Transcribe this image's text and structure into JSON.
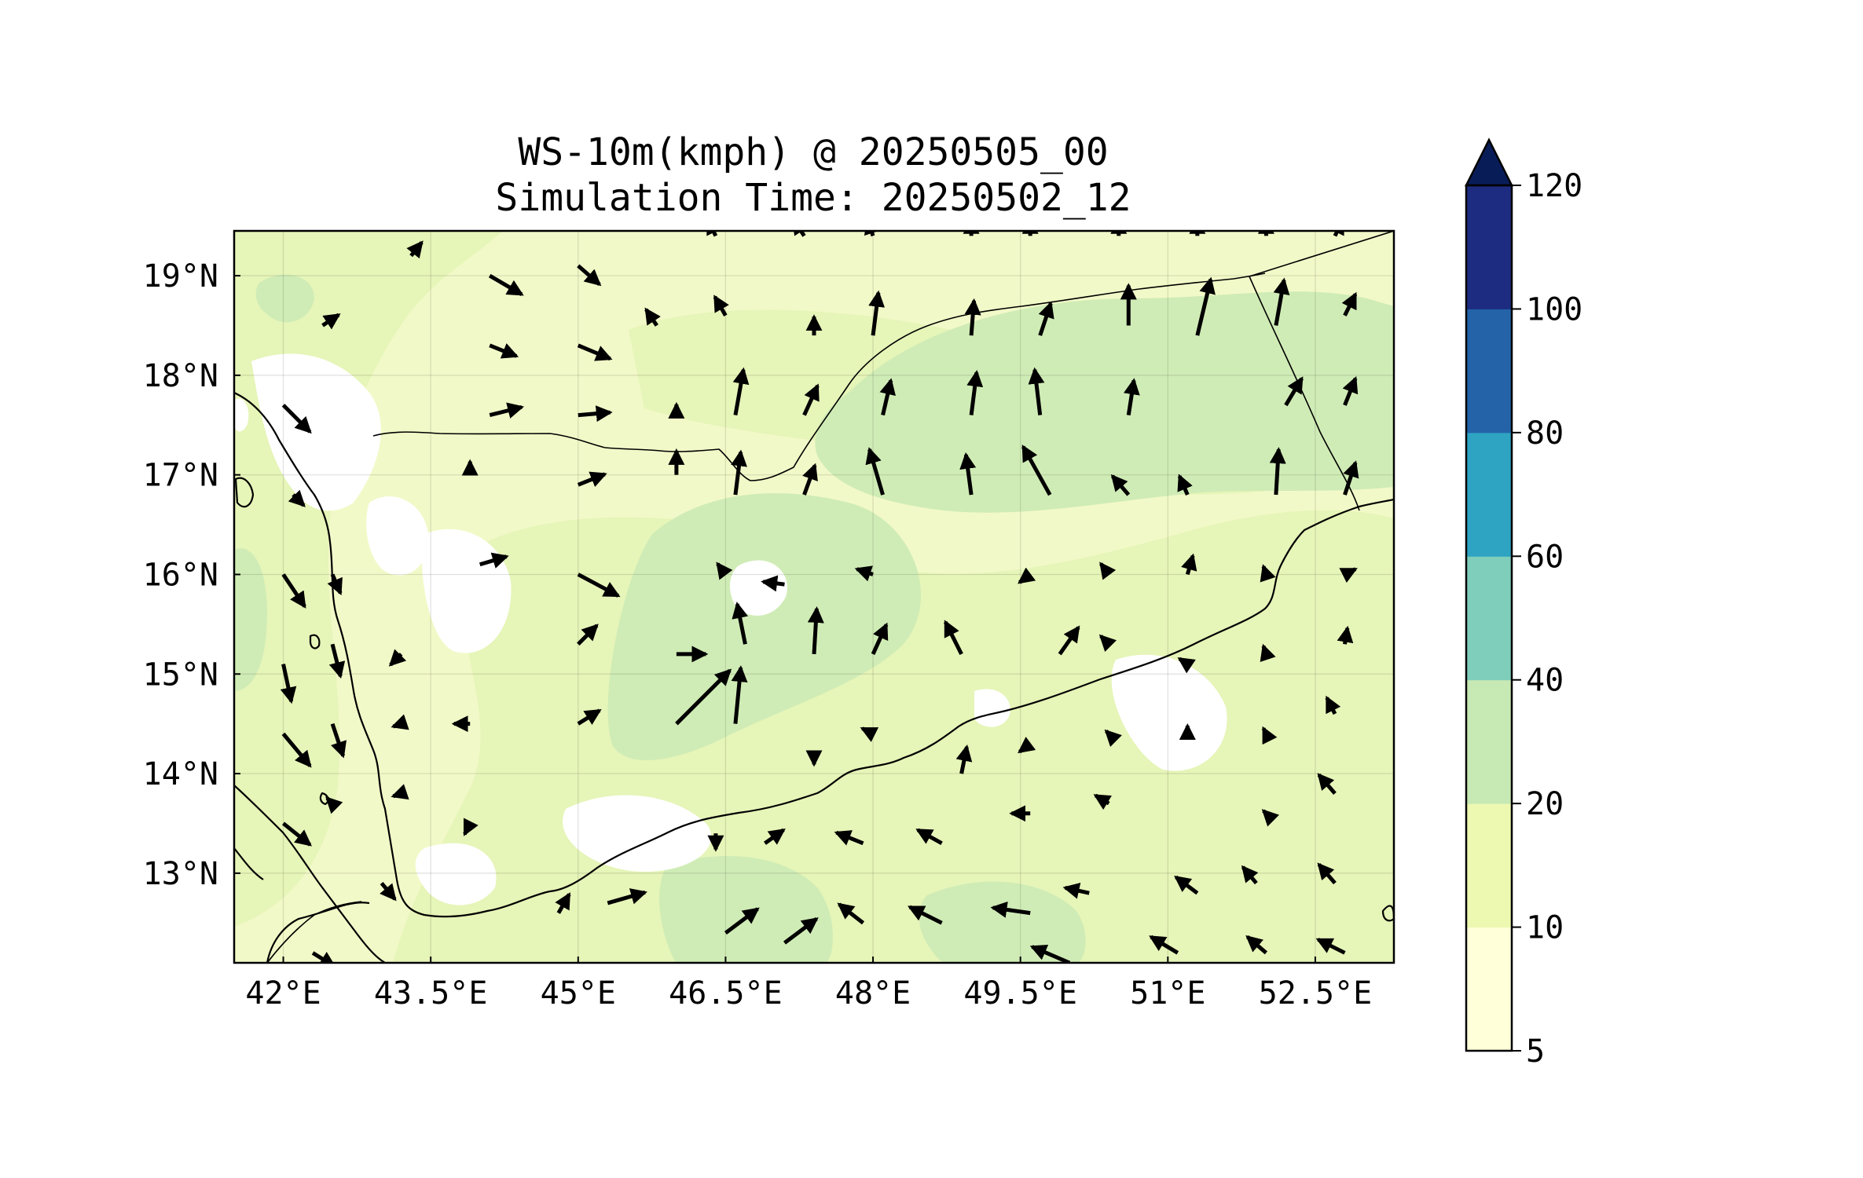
{
  "title_line1": "WS-10m(kmph) @ 20250505_00",
  "title_line2": "Simulation Time: 20250502_12",
  "map": {
    "lon_range": [
      41.5,
      53.3
    ],
    "lat_range": [
      12.1,
      19.45
    ],
    "lon_ticks": [
      {
        "value": 42,
        "label": "42°E"
      },
      {
        "value": 43.5,
        "label": "43.5°E"
      },
      {
        "value": 45,
        "label": "45°E"
      },
      {
        "value": 46.5,
        "label": "46.5°E"
      },
      {
        "value": 48,
        "label": "48°E"
      },
      {
        "value": 49.5,
        "label": "49.5°E"
      },
      {
        "value": 51,
        "label": "51°E"
      },
      {
        "value": 52.5,
        "label": "52.5°E"
      }
    ],
    "lat_ticks": [
      {
        "value": 13,
        "label": "13°N"
      },
      {
        "value": 14,
        "label": "14°N"
      },
      {
        "value": 15,
        "label": "15°N"
      },
      {
        "value": 16,
        "label": "16°N"
      },
      {
        "value": 17,
        "label": "17°N"
      },
      {
        "value": 18,
        "label": "18°N"
      },
      {
        "value": 19,
        "label": "19°N"
      }
    ],
    "background_color": "#f2f9c8",
    "shading": [
      {
        "band": "10-20",
        "color": "#e6f5b8",
        "region": "wide"
      },
      {
        "band": "20-40",
        "color": "#d0ecb6",
        "region": "patches"
      },
      {
        "band": "5-10",
        "color": "#ffffff",
        "region": "calm"
      }
    ]
  },
  "colorbar": {
    "extend": "max",
    "levels": [
      {
        "label": "5",
        "color": "#ffffd9"
      },
      {
        "label": "10",
        "color": "#edf8b1"
      },
      {
        "label": "20",
        "color": "#c7e9b4"
      },
      {
        "label": "40",
        "color": "#7fcdbb"
      },
      {
        "label": "60",
        "color": "#2ea4c2"
      },
      {
        "label": "80",
        "color": "#2463a8"
      },
      {
        "label": "100",
        "color": "#1d2c80"
      },
      {
        "label": "120",
        "color": "#081d58"
      }
    ]
  },
  "wind_vectors": [
    {
      "lon": 42.0,
      "lat": 17.7,
      "u": 10,
      "v": -10
    },
    {
      "lon": 42.1,
      "lat": 16.8,
      "u": 4,
      "v": -4
    },
    {
      "lon": 42.0,
      "lat": 16.0,
      "u": 8,
      "v": -12
    },
    {
      "lon": 42.0,
      "lat": 15.1,
      "u": 3,
      "v": -14
    },
    {
      "lon": 42.0,
      "lat": 14.4,
      "u": 10,
      "v": -12
    },
    {
      "lon": 42.0,
      "lat": 13.5,
      "u": 10,
      "v": -8
    },
    {
      "lon": 42.4,
      "lat": 18.5,
      "u": 6,
      "v": 4
    },
    {
      "lon": 42.5,
      "lat": 16.0,
      "u": 3,
      "v": -7
    },
    {
      "lon": 42.5,
      "lat": 15.3,
      "u": 3,
      "v": -12
    },
    {
      "lon": 42.5,
      "lat": 14.5,
      "u": 4,
      "v": -12
    },
    {
      "lon": 42.5,
      "lat": 13.7,
      "u": -2,
      "v": 2
    },
    {
      "lon": 42.3,
      "lat": 12.2,
      "u": 8,
      "v": -5
    },
    {
      "lon": 43.3,
      "lat": 19.2,
      "u": 4,
      "v": 5
    },
    {
      "lon": 43.2,
      "lat": 15.2,
      "u": -4,
      "v": -4
    },
    {
      "lon": 43.2,
      "lat": 14.5,
      "u": -3,
      "v": -1
    },
    {
      "lon": 43.2,
      "lat": 13.8,
      "u": -3,
      "v": -1
    },
    {
      "lon": 43.0,
      "lat": 12.9,
      "u": 5,
      "v": -6
    },
    {
      "lon": 44.1,
      "lat": 19.0,
      "u": 12,
      "v": -7
    },
    {
      "lon": 44.1,
      "lat": 18.3,
      "u": 10,
      "v": -4
    },
    {
      "lon": 44.1,
      "lat": 17.6,
      "u": 12,
      "v": 3
    },
    {
      "lon": 43.9,
      "lat": 17.0,
      "u": 0,
      "v": 5
    },
    {
      "lon": 44.0,
      "lat": 16.1,
      "u": 10,
      "v": 3
    },
    {
      "lon": 43.9,
      "lat": 14.5,
      "u": -6,
      "v": 0
    },
    {
      "lon": 43.9,
      "lat": 13.5,
      "u": -2,
      "v": -4
    },
    {
      "lon": 45.0,
      "lat": 19.1,
      "u": 8,
      "v": -7
    },
    {
      "lon": 45.0,
      "lat": 18.3,
      "u": 12,
      "v": -5
    },
    {
      "lon": 45.0,
      "lat": 17.6,
      "u": 12,
      "v": 1
    },
    {
      "lon": 45.0,
      "lat": 16.9,
      "u": 10,
      "v": 4
    },
    {
      "lon": 45.0,
      "lat": 16.0,
      "u": 15,
      "v": -8
    },
    {
      "lon": 45.0,
      "lat": 15.3,
      "u": 7,
      "v": 7
    },
    {
      "lon": 45.0,
      "lat": 14.5,
      "u": 8,
      "v": 5
    },
    {
      "lon": 44.8,
      "lat": 12.6,
      "u": 4,
      "v": 7
    },
    {
      "lon": 45.3,
      "lat": 12.7,
      "u": 14,
      "v": 4
    },
    {
      "lon": 45.8,
      "lat": 18.5,
      "u": -4,
      "v": 6
    },
    {
      "lon": 46.0,
      "lat": 17.0,
      "u": 0,
      "v": 9
    },
    {
      "lon": 46.0,
      "lat": 17.6,
      "u": 0,
      "v": 4
    },
    {
      "lon": 46.0,
      "lat": 15.2,
      "u": 11,
      "v": 0
    },
    {
      "lon": 46.0,
      "lat": 14.5,
      "u": 20,
      "v": 20
    },
    {
      "lon": 46.4,
      "lat": 19.4,
      "u": -3,
      "v": 6
    },
    {
      "lon": 46.5,
      "lat": 18.6,
      "u": -4,
      "v": 7
    },
    {
      "lon": 46.6,
      "lat": 17.6,
      "u": 3,
      "v": 17
    },
    {
      "lon": 46.6,
      "lat": 16.8,
      "u": 2,
      "v": 16
    },
    {
      "lon": 46.5,
      "lat": 16.0,
      "u": -3,
      "v": 4
    },
    {
      "lon": 46.7,
      "lat": 15.3,
      "u": -3,
      "v": 15
    },
    {
      "lon": 46.6,
      "lat": 14.5,
      "u": 2,
      "v": 21
    },
    {
      "lon": 46.5,
      "lat": 12.4,
      "u": 12,
      "v": 9
    },
    {
      "lon": 46.4,
      "lat": 13.4,
      "u": 0,
      "v": -6
    },
    {
      "lon": 47.3,
      "lat": 19.4,
      "u": -4,
      "v": 6
    },
    {
      "lon": 47.4,
      "lat": 18.4,
      "u": 0,
      "v": 7
    },
    {
      "lon": 47.3,
      "lat": 17.6,
      "u": 5,
      "v": 11
    },
    {
      "lon": 47.3,
      "lat": 16.8,
      "u": 4,
      "v": 11
    },
    {
      "lon": 47.4,
      "lat": 15.2,
      "u": 1,
      "v": 17
    },
    {
      "lon": 47.4,
      "lat": 14.2,
      "u": 0,
      "v": -4
    },
    {
      "lon": 47.1,
      "lat": 15.9,
      "u": -8,
      "v": 1
    },
    {
      "lon": 46.9,
      "lat": 13.3,
      "u": 7,
      "v": 5
    },
    {
      "lon": 47.1,
      "lat": 12.3,
      "u": 12,
      "v": 9
    },
    {
      "lon": 48.0,
      "lat": 19.4,
      "u": -2,
      "v": 6
    },
    {
      "lon": 48.0,
      "lat": 18.4,
      "u": 2,
      "v": 16
    },
    {
      "lon": 48.1,
      "lat": 17.6,
      "u": 3,
      "v": 13
    },
    {
      "lon": 48.1,
      "lat": 16.8,
      "u": -5,
      "v": 17
    },
    {
      "lon": 48.0,
      "lat": 16.0,
      "u": -6,
      "v": 2
    },
    {
      "lon": 48.0,
      "lat": 15.2,
      "u": 5,
      "v": 11
    },
    {
      "lon": 48.0,
      "lat": 14.4,
      "u": -4,
      "v": 2
    },
    {
      "lon": 47.9,
      "lat": 13.3,
      "u": -10,
      "v": 4
    },
    {
      "lon": 47.9,
      "lat": 12.5,
      "u": -9,
      "v": 7
    },
    {
      "lon": 49.0,
      "lat": 19.4,
      "u": 0,
      "v": 6
    },
    {
      "lon": 49.0,
      "lat": 18.4,
      "u": 1,
      "v": 13
    },
    {
      "lon": 49.0,
      "lat": 17.6,
      "u": 2,
      "v": 16
    },
    {
      "lon": 49.0,
      "lat": 16.8,
      "u": -2,
      "v": 15
    },
    {
      "lon": 48.9,
      "lat": 15.2,
      "u": -6,
      "v": 12
    },
    {
      "lon": 48.9,
      "lat": 14.0,
      "u": 2,
      "v": 10
    },
    {
      "lon": 48.7,
      "lat": 13.3,
      "u": -9,
      "v": 5
    },
    {
      "lon": 48.7,
      "lat": 12.5,
      "u": -12,
      "v": 6
    },
    {
      "lon": 49.6,
      "lat": 19.4,
      "u": 0,
      "v": 6
    },
    {
      "lon": 49.7,
      "lat": 18.4,
      "u": 4,
      "v": 12
    },
    {
      "lon": 49.7,
      "lat": 17.6,
      "u": -2,
      "v": 17
    },
    {
      "lon": 49.8,
      "lat": 16.8,
      "u": -10,
      "v": 18
    },
    {
      "lon": 49.6,
      "lat": 16.0,
      "u": -4,
      "v": -3
    },
    {
      "lon": 49.9,
      "lat": 15.2,
      "u": 7,
      "v": 10
    },
    {
      "lon": 49.6,
      "lat": 14.3,
      "u": -4,
      "v": -3
    },
    {
      "lon": 49.6,
      "lat": 13.6,
      "u": -7,
      "v": 0
    },
    {
      "lon": 49.6,
      "lat": 12.6,
      "u": -14,
      "v": 2
    },
    {
      "lon": 50.5,
      "lat": 19.4,
      "u": 0,
      "v": 6
    },
    {
      "lon": 50.6,
      "lat": 18.5,
      "u": 0,
      "v": 15
    },
    {
      "lon": 50.6,
      "lat": 17.6,
      "u": 2,
      "v": 13
    },
    {
      "lon": 50.6,
      "lat": 16.8,
      "u": -6,
      "v": 7
    },
    {
      "lon": 50.4,
      "lat": 16.0,
      "u": -3,
      "v": 4
    },
    {
      "lon": 50.4,
      "lat": 15.3,
      "u": -3,
      "v": 3
    },
    {
      "lon": 50.4,
      "lat": 14.4,
      "u": -1,
      "v": 1
    },
    {
      "lon": 50.4,
      "lat": 13.7,
      "u": -5,
      "v": 3
    },
    {
      "lon": 50.2,
      "lat": 12.8,
      "u": -9,
      "v": 2
    },
    {
      "lon": 50.0,
      "lat": 12.1,
      "u": -14,
      "v": 6
    },
    {
      "lon": 51.3,
      "lat": 19.4,
      "u": 0,
      "v": 6
    },
    {
      "lon": 51.3,
      "lat": 18.4,
      "u": 5,
      "v": 21
    },
    {
      "lon": 51.2,
      "lat": 16.8,
      "u": -3,
      "v": 7
    },
    {
      "lon": 51.2,
      "lat": 16.0,
      "u": 2,
      "v": 7
    },
    {
      "lon": 51.2,
      "lat": 15.1,
      "u": -3,
      "v": 2
    },
    {
      "lon": 51.2,
      "lat": 14.4,
      "u": 0,
      "v": 3
    },
    {
      "lon": 51.3,
      "lat": 12.8,
      "u": -8,
      "v": 6
    },
    {
      "lon": 51.1,
      "lat": 12.2,
      "u": -10,
      "v": 6
    },
    {
      "lon": 52.0,
      "lat": 19.4,
      "u": 0,
      "v": 6
    },
    {
      "lon": 52.1,
      "lat": 18.5,
      "u": 3,
      "v": 17
    },
    {
      "lon": 52.2,
      "lat": 17.7,
      "u": 6,
      "v": 10
    },
    {
      "lon": 52.1,
      "lat": 16.8,
      "u": 1,
      "v": 17
    },
    {
      "lon": 52.0,
      "lat": 16.0,
      "u": -1,
      "v": 3
    },
    {
      "lon": 52.0,
      "lat": 15.2,
      "u": -1,
      "v": 3
    },
    {
      "lon": 52.0,
      "lat": 14.4,
      "u": -1,
      "v": 2
    },
    {
      "lon": 52.0,
      "lat": 13.6,
      "u": -1,
      "v": 1
    },
    {
      "lon": 51.9,
      "lat": 12.9,
      "u": -5,
      "v": 6
    },
    {
      "lon": 52.0,
      "lat": 12.2,
      "u": -7,
      "v": 6
    },
    {
      "lon": 52.7,
      "lat": 19.4,
      "u": 3,
      "v": 6
    },
    {
      "lon": 52.8,
      "lat": 18.6,
      "u": 4,
      "v": 8
    },
    {
      "lon": 52.8,
      "lat": 17.7,
      "u": 4,
      "v": 10
    },
    {
      "lon": 52.8,
      "lat": 16.8,
      "u": 4,
      "v": 12
    },
    {
      "lon": 52.8,
      "lat": 16.0,
      "u": 4,
      "v": 2
    },
    {
      "lon": 52.8,
      "lat": 15.3,
      "u": 1,
      "v": 6
    },
    {
      "lon": 52.7,
      "lat": 14.6,
      "u": -3,
      "v": 6
    },
    {
      "lon": 52.7,
      "lat": 13.8,
      "u": -6,
      "v": 7
    },
    {
      "lon": 52.7,
      "lat": 12.9,
      "u": -6,
      "v": 7
    },
    {
      "lon": 52.8,
      "lat": 12.2,
      "u": -10,
      "v": 5
    }
  ]
}
